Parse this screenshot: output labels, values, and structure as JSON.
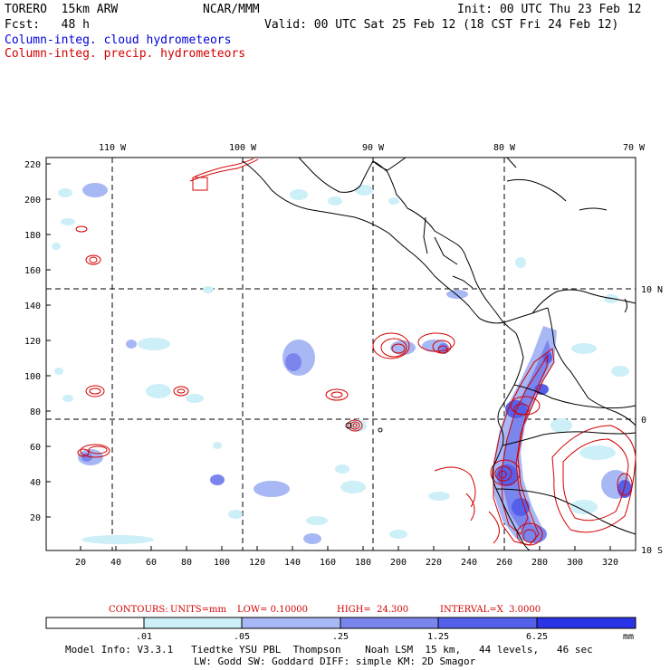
{
  "header": {
    "model": "TORERO  15km ARW",
    "org": "NCAR/MMM",
    "init": "Init: 00 UTC Thu 23 Feb 12",
    "fcst": "Fcst:   48 h",
    "valid": "Valid: 00 UTC Sat 25 Feb 12 (18 CST Fri 24 Feb 12)",
    "legend_cloud": "Column-integ. cloud hydrometeors",
    "legend_precip": "Column-integ. precip. hydrometeors"
  },
  "colors": {
    "cloud_text": "#0000d8",
    "precip": "#d40000",
    "shade1": "#cceff8",
    "shade2": "#a8b8f4",
    "shade3": "#7a86ee",
    "shade4": "#5560ea",
    "shade5": "#2a34e6"
  },
  "map": {
    "lon_labels": [
      "110 W",
      "100 W",
      "90 W",
      "80 W",
      "70 W"
    ],
    "lat_labels": [
      "10 N",
      "0",
      "10 S"
    ],
    "x_ticks": [
      "20",
      "40",
      "60",
      "80",
      "100",
      "120",
      "140",
      "160",
      "180",
      "200",
      "220",
      "240",
      "260",
      "280",
      "300",
      "320"
    ],
    "y_ticks": [
      "20",
      "40",
      "60",
      "80",
      "100",
      "120",
      "140",
      "160",
      "180",
      "200",
      "220"
    ]
  },
  "contour_info": {
    "contours": "CONTOURS:",
    "units": "UNITS=mm",
    "low": "LOW= 0.10000",
    "high": "HIGH=  24.300",
    "interval": "INTERVAL=X  3.0000"
  },
  "colorbar": {
    "labels": [
      ".01",
      ".05",
      ".25",
      "1.25",
      "6.25"
    ],
    "unit": "mm"
  },
  "model_info": {
    "line1": "Model Info: V3.3.1   Tiedtke YSU PBL  Thompson    Noah LSM  15 km,   44 levels,   46 sec",
    "line2": "LW: Godd SW: Goddard DIFF: simple KM: 2D Smagor"
  }
}
